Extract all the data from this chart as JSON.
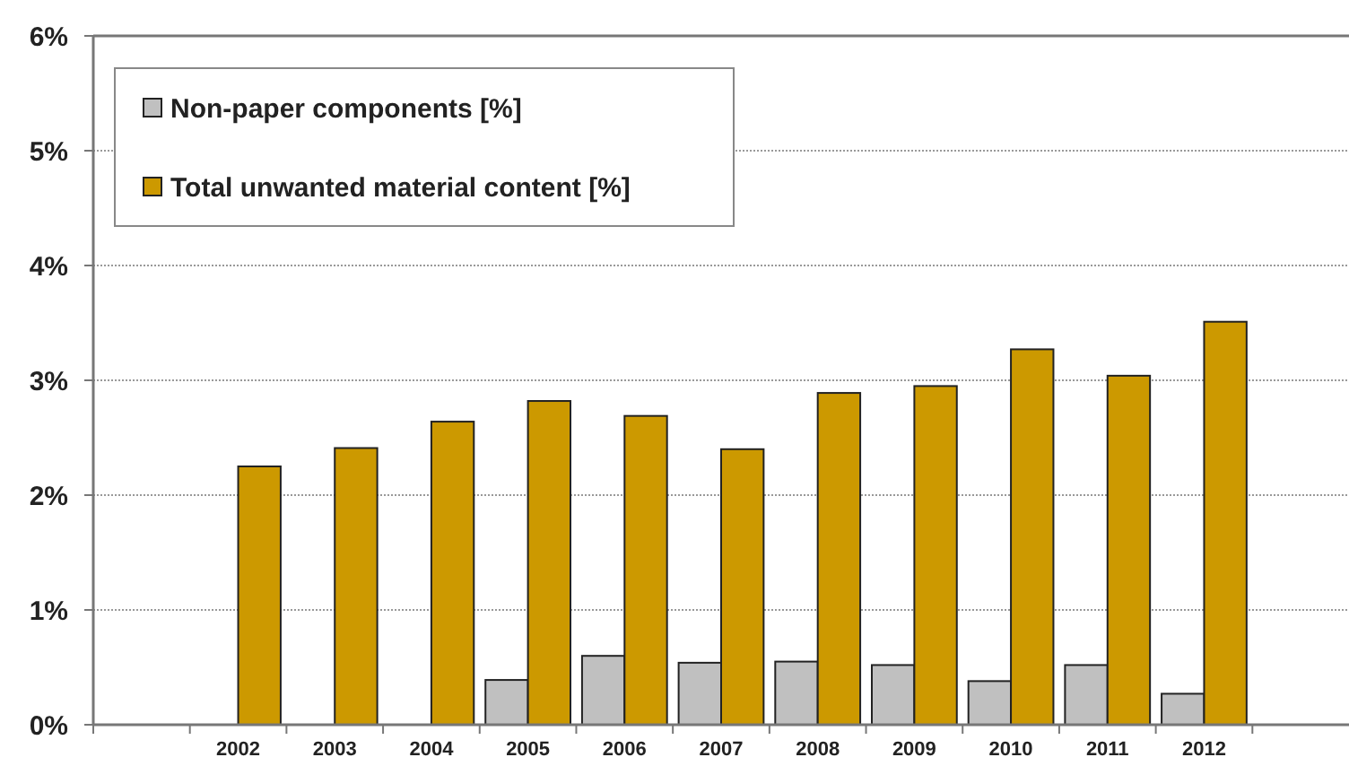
{
  "chart_data": {
    "type": "bar",
    "categories": [
      null,
      "2002",
      "2003",
      "2004",
      "2005",
      "2006",
      "2007",
      "2008",
      "2009",
      "2010",
      "2011",
      "2012",
      null
    ],
    "series": [
      {
        "name": "Non-paper components [%]",
        "color": "#c0c0c0",
        "values": [
          null,
          null,
          null,
          null,
          0.39,
          0.6,
          0.54,
          0.55,
          0.52,
          0.38,
          0.52,
          0.27,
          null
        ]
      },
      {
        "name": "Total unwanted material content [%]",
        "color": "#cc9900",
        "values": [
          null,
          2.25,
          2.41,
          2.64,
          2.82,
          2.69,
          2.4,
          2.89,
          2.95,
          3.27,
          3.04,
          3.51,
          null
        ]
      }
    ],
    "ylim": [
      0,
      6
    ],
    "yticks": [
      {
        "value": 0,
        "label": "0%"
      },
      {
        "value": 1,
        "label": "1%"
      },
      {
        "value": 2,
        "label": "2%"
      },
      {
        "value": 3,
        "label": "3%"
      },
      {
        "value": 4,
        "label": "4%"
      },
      {
        "value": 5,
        "label": "5%"
      },
      {
        "value": 6,
        "label": "6%"
      }
    ],
    "grid": "y",
    "legend": "top left"
  }
}
